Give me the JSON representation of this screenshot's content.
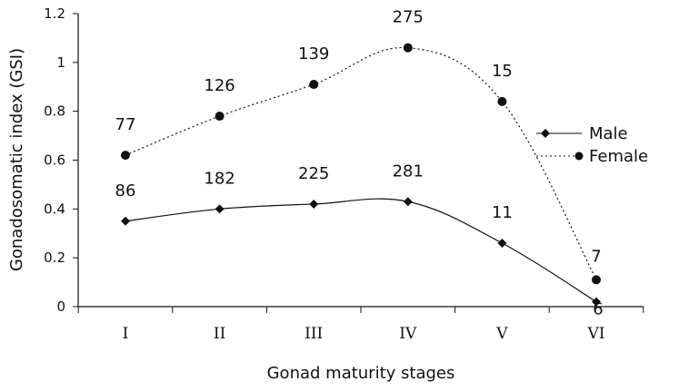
{
  "chart_data": {
    "type": "line",
    "xlabel": "Gonad maturity stages",
    "ylabel": "Gonadosomatic index (GSI)",
    "categories": [
      "I",
      "II",
      "III",
      "IV",
      "V",
      "VI"
    ],
    "ylim": [
      0,
      1.2
    ],
    "yticks": [
      "0",
      "0.2",
      "0.4",
      "0.6",
      "0.8",
      "1",
      "1.2"
    ],
    "legend_position": "right",
    "grid": false,
    "series": [
      {
        "name": "Male",
        "values": [
          0.35,
          0.4,
          0.42,
          0.43,
          0.26,
          0.02
        ],
        "labels": [
          "86",
          "182",
          "225",
          "281",
          "11",
          "6"
        ],
        "marker": "diamond",
        "line_style": "solid",
        "color": "#111111"
      },
      {
        "name": "Female",
        "values": [
          0.62,
          0.78,
          0.91,
          1.06,
          0.84,
          0.11
        ],
        "labels": [
          "77",
          "126",
          "139",
          "275",
          "15",
          "7"
        ],
        "marker": "circle",
        "line_style": "dotted",
        "color": "#111111"
      }
    ]
  }
}
